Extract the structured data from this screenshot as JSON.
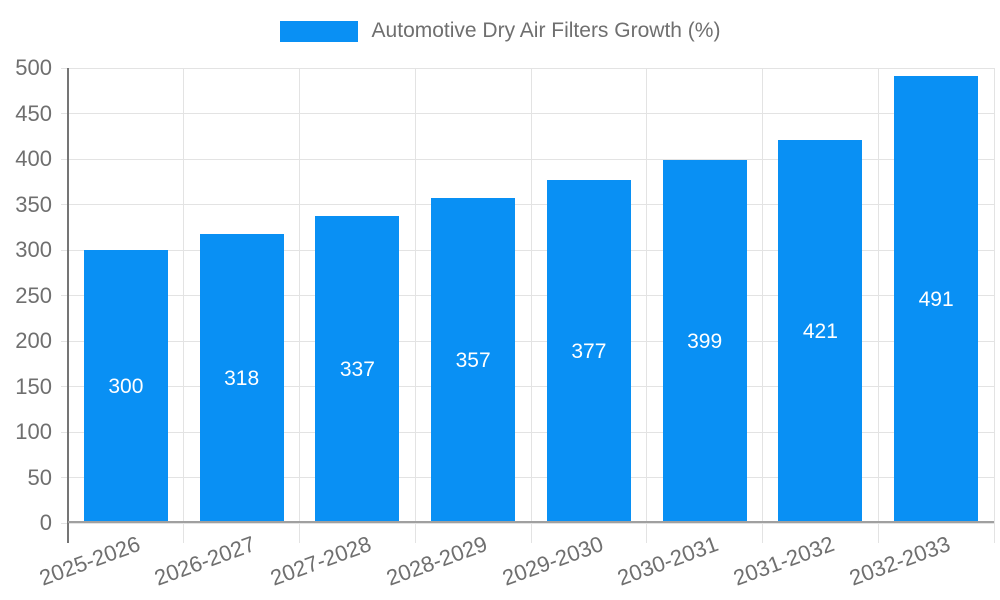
{
  "chart_data": {
    "type": "bar",
    "title": "Automotive Dry Air Filters Growth (%)",
    "legend_position": "top",
    "categories": [
      "2025-2026",
      "2026-2027",
      "2027-2028",
      "2028-2029",
      "2029-2030",
      "2030-2031",
      "2031-2032",
      "2032-2033"
    ],
    "values": [
      300,
      318,
      337,
      357,
      377,
      399,
      421,
      491
    ],
    "bar_value_labels": [
      "300",
      "318",
      "337",
      "357",
      "377",
      "399",
      "421",
      "491"
    ],
    "xlabel": "",
    "ylabel": "",
    "ylim": [
      0,
      500
    ],
    "y_ticks": [
      0,
      50,
      100,
      150,
      200,
      250,
      300,
      350,
      400,
      450,
      500
    ],
    "grid": true,
    "colors": {
      "bar": "#0990f4",
      "bar_label_text": "#ffffff",
      "axis_text": "#6f6f6f",
      "legend_text": "#6f6f6f",
      "y_axis_line": "#757575",
      "x_axis_line": "#a0a0a0",
      "gridline": "#e3e3e3",
      "background": "#ffffff"
    }
  }
}
